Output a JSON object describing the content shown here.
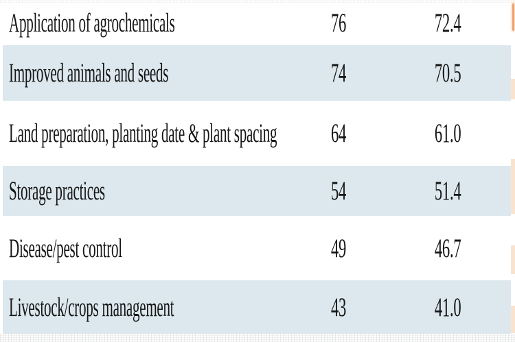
{
  "table": {
    "rows": [
      {
        "label": "Application of agrochemicals",
        "count": "76",
        "percent": "72.4"
      },
      {
        "label": "Improved animals and seeds",
        "count": "74",
        "percent": "70.5"
      },
      {
        "label": "Land preparation, planting date & plant spacing",
        "count": "64",
        "percent": "61.0"
      },
      {
        "label": "Storage practices",
        "count": "54",
        "percent": "51.4"
      },
      {
        "label": "Disease/pest control",
        "count": "49",
        "percent": "46.7"
      },
      {
        "label": "Livestock/crops management",
        "count": "43",
        "percent": "41.0"
      }
    ]
  },
  "chart_data": {
    "type": "table",
    "rows": [
      [
        "Application of agrochemicals",
        76,
        72.4
      ],
      [
        "Improved animals and seeds",
        74,
        70.5
      ],
      [
        "Land preparation, planting date & plant spacing",
        64,
        61.0
      ],
      [
        "Storage practices",
        54,
        51.4
      ],
      [
        "Disease/pest control",
        49,
        46.7
      ],
      [
        "Livestock/crops management",
        43,
        41.0
      ]
    ]
  },
  "colors": {
    "row_shade": "#dce8ed",
    "text": "#151515",
    "edge_mark_strong": "#f0a46e",
    "edge_mark_pale": "#fae3ce"
  }
}
